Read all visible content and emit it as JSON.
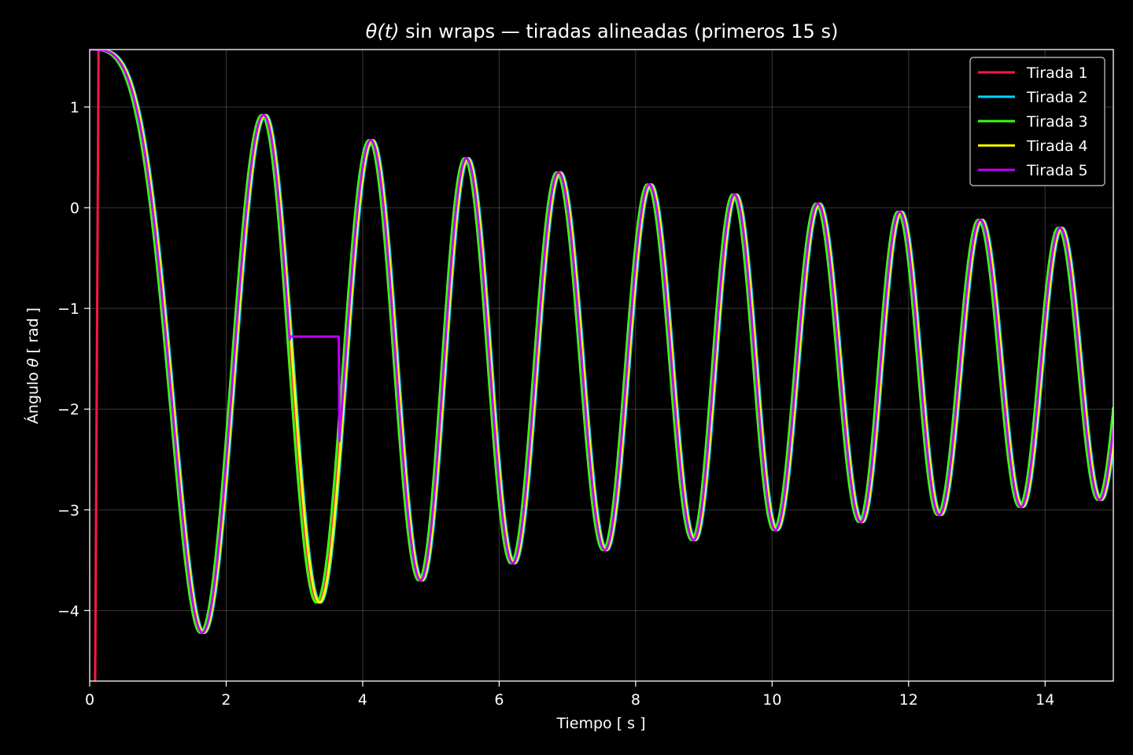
{
  "chart_data": {
    "type": "line",
    "title_prefix": "θ(t)",
    "title_rest": " sin wraps — tiradas alineadas (primeros 15 s)",
    "xlabel": "Tiempo [ s ]",
    "ylabel_prefix": "Ángulo ",
    "ylabel_symbol": "θ",
    "ylabel_suffix": " [ rad ]",
    "xlim": [
      0,
      15
    ],
    "ylim": [
      -4.7,
      1.57
    ],
    "xticks": [
      0,
      2,
      4,
      6,
      8,
      10,
      12,
      14
    ],
    "yticks": [
      -4,
      -3,
      -2,
      -1,
      0,
      1
    ],
    "grid": true,
    "legend_position": "top-right",
    "background": "#000000",
    "peaks": [
      [
        0,
        1.57
      ],
      [
        1.65,
        -4.22
      ],
      [
        2.55,
        0.92
      ],
      [
        3.35,
        -3.92
      ],
      [
        4.12,
        0.67
      ],
      [
        4.85,
        -3.7
      ],
      [
        5.52,
        0.49
      ],
      [
        6.2,
        -3.53
      ],
      [
        6.87,
        0.35
      ],
      [
        7.55,
        -3.4
      ],
      [
        8.2,
        0.23
      ],
      [
        8.85,
        -3.3
      ],
      [
        9.45,
        0.13
      ],
      [
        10.05,
        -3.2
      ],
      [
        10.67,
        0.04
      ],
      [
        11.3,
        -3.12
      ],
      [
        11.87,
        -0.04
      ],
      [
        12.45,
        -3.05
      ],
      [
        13.05,
        -0.12
      ],
      [
        13.65,
        -2.97
      ],
      [
        14.22,
        -0.2
      ],
      [
        14.8,
        -2.9
      ]
    ],
    "series": [
      {
        "name": "Tirada 1",
        "color": "#ff1744",
        "time_shift": 0.0
      },
      {
        "name": "Tirada 2",
        "color": "#00d4ff",
        "time_shift": 0.035
      },
      {
        "name": "Tirada 3",
        "color": "#39ff14",
        "time_shift": -0.03
      },
      {
        "name": "Tirada 4",
        "color": "#ffff00",
        "time_shift": 0.02
      },
      {
        "name": "Tirada 5",
        "color": "#c000ff",
        "time_shift": 0.0
      }
    ],
    "tirada1_initial_drop": {
      "t": 0.08,
      "from": 1.57,
      "to": -4.7
    },
    "tirada5_plateau": {
      "t_start": 2.93,
      "t_end": 3.65,
      "value": -1.28
    }
  }
}
